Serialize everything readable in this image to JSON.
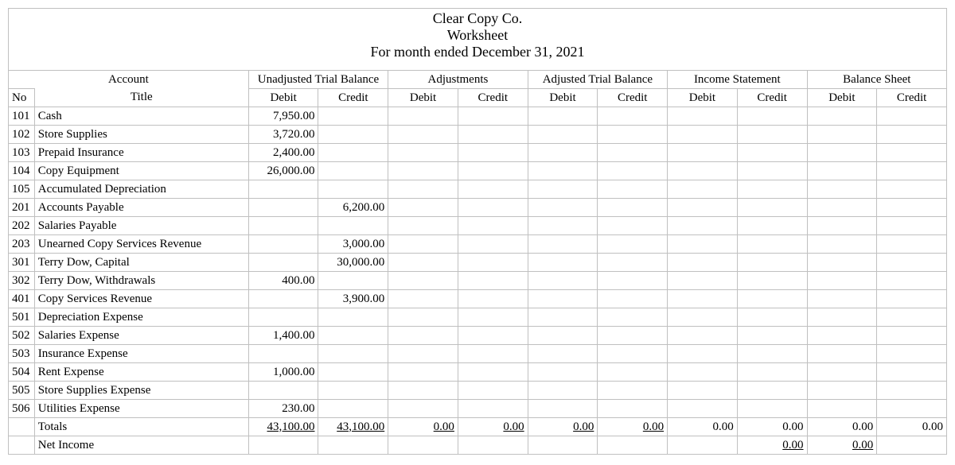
{
  "header": {
    "company": "Clear Copy Co.",
    "title": "Worksheet",
    "period": "For month ended December 31, 2021"
  },
  "column_groups": {
    "account": "Account",
    "unadjusted": "Unadjusted Trial Balance",
    "adjustments": "Adjustments",
    "adjusted": "Adjusted Trial Balance",
    "income": "Income Statement",
    "balance": "Balance Sheet"
  },
  "sub_headers": {
    "no": "No",
    "title": "Title",
    "debit": "Debit",
    "credit": "Credit"
  },
  "rows": [
    {
      "no": "101",
      "title": "Cash",
      "utb_d": "7,950.00",
      "utb_c": "",
      "adj_d": "",
      "adj_c": "",
      "atb_d": "",
      "atb_c": "",
      "is_d": "",
      "is_c": "",
      "bs_d": "",
      "bs_c": ""
    },
    {
      "no": "102",
      "title": "Store Supplies",
      "utb_d": "3,720.00",
      "utb_c": "",
      "adj_d": "",
      "adj_c": "",
      "atb_d": "",
      "atb_c": "",
      "is_d": "",
      "is_c": "",
      "bs_d": "",
      "bs_c": ""
    },
    {
      "no": "103",
      "title": "Prepaid Insurance",
      "utb_d": "2,400.00",
      "utb_c": "",
      "adj_d": "",
      "adj_c": "",
      "atb_d": "",
      "atb_c": "",
      "is_d": "",
      "is_c": "",
      "bs_d": "",
      "bs_c": ""
    },
    {
      "no": "104",
      "title": "Copy Equipment",
      "utb_d": "26,000.00",
      "utb_c": "",
      "adj_d": "",
      "adj_c": "",
      "atb_d": "",
      "atb_c": "",
      "is_d": "",
      "is_c": "",
      "bs_d": "",
      "bs_c": ""
    },
    {
      "no": "105",
      "title": "Accumulated Depreciation",
      "utb_d": "",
      "utb_c": "",
      "adj_d": "",
      "adj_c": "",
      "atb_d": "",
      "atb_c": "",
      "is_d": "",
      "is_c": "",
      "bs_d": "",
      "bs_c": ""
    },
    {
      "no": "201",
      "title": "Accounts Payable",
      "utb_d": "",
      "utb_c": "6,200.00",
      "adj_d": "",
      "adj_c": "",
      "atb_d": "",
      "atb_c": "",
      "is_d": "",
      "is_c": "",
      "bs_d": "",
      "bs_c": ""
    },
    {
      "no": "202",
      "title": "Salaries Payable",
      "utb_d": "",
      "utb_c": "",
      "adj_d": "",
      "adj_c": "",
      "atb_d": "",
      "atb_c": "",
      "is_d": "",
      "is_c": "",
      "bs_d": "",
      "bs_c": ""
    },
    {
      "no": "203",
      "title": "Unearned Copy Services Revenue",
      "utb_d": "",
      "utb_c": "3,000.00",
      "adj_d": "",
      "adj_c": "",
      "atb_d": "",
      "atb_c": "",
      "is_d": "",
      "is_c": "",
      "bs_d": "",
      "bs_c": ""
    },
    {
      "no": "301",
      "title": "Terry Dow, Capital",
      "utb_d": "",
      "utb_c": "30,000.00",
      "adj_d": "",
      "adj_c": "",
      "atb_d": "",
      "atb_c": "",
      "is_d": "",
      "is_c": "",
      "bs_d": "",
      "bs_c": ""
    },
    {
      "no": "302",
      "title": "Terry Dow, Withdrawals",
      "utb_d": "400.00",
      "utb_c": "",
      "adj_d": "",
      "adj_c": "",
      "atb_d": "",
      "atb_c": "",
      "is_d": "",
      "is_c": "",
      "bs_d": "",
      "bs_c": ""
    },
    {
      "no": "401",
      "title": "Copy Services Revenue",
      "utb_d": "",
      "utb_c": "3,900.00",
      "adj_d": "",
      "adj_c": "",
      "atb_d": "",
      "atb_c": "",
      "is_d": "",
      "is_c": "",
      "bs_d": "",
      "bs_c": ""
    },
    {
      "no": "501",
      "title": "Depreciation Expense",
      "utb_d": "",
      "utb_c": "",
      "adj_d": "",
      "adj_c": "",
      "atb_d": "",
      "atb_c": "",
      "is_d": "",
      "is_c": "",
      "bs_d": "",
      "bs_c": ""
    },
    {
      "no": "502",
      "title": "Salaries Expense",
      "utb_d": "1,400.00",
      "utb_c": "",
      "adj_d": "",
      "adj_c": "",
      "atb_d": "",
      "atb_c": "",
      "is_d": "",
      "is_c": "",
      "bs_d": "",
      "bs_c": ""
    },
    {
      "no": "503",
      "title": "Insurance Expense",
      "utb_d": "",
      "utb_c": "",
      "adj_d": "",
      "adj_c": "",
      "atb_d": "",
      "atb_c": "",
      "is_d": "",
      "is_c": "",
      "bs_d": "",
      "bs_c": ""
    },
    {
      "no": "504",
      "title": "Rent Expense",
      "utb_d": "1,000.00",
      "utb_c": "",
      "adj_d": "",
      "adj_c": "",
      "atb_d": "",
      "atb_c": "",
      "is_d": "",
      "is_c": "",
      "bs_d": "",
      "bs_c": ""
    },
    {
      "no": "505",
      "title": "Store Supplies Expense",
      "utb_d": "",
      "utb_c": "",
      "adj_d": "",
      "adj_c": "",
      "atb_d": "",
      "atb_c": "",
      "is_d": "",
      "is_c": "",
      "bs_d": "",
      "bs_c": ""
    },
    {
      "no": "506",
      "title": "Utilities Expense",
      "utb_d": "230.00",
      "utb_c": "",
      "adj_d": "",
      "adj_c": "",
      "atb_d": "",
      "atb_c": "",
      "is_d": "",
      "is_c": "",
      "bs_d": "",
      "bs_c": ""
    }
  ],
  "totals": {
    "label": "Totals",
    "utb_d": "43,100.00",
    "utb_c": "43,100.00",
    "adj_d": "0.00",
    "adj_c": "0.00",
    "atb_d": "0.00",
    "atb_c": "0.00",
    "is_d": "0.00",
    "is_c": "0.00",
    "bs_d": "0.00",
    "bs_c": "0.00"
  },
  "net_income": {
    "label": "Net Income",
    "is_c": "0.00",
    "bs_d": "0.00"
  },
  "styling": {
    "font_family": "Times New Roman",
    "border_color": "#c0c0c0",
    "background_color": "#ffffff",
    "text_color": "#000000",
    "header_fontsize": 18,
    "body_fontsize": 15
  }
}
